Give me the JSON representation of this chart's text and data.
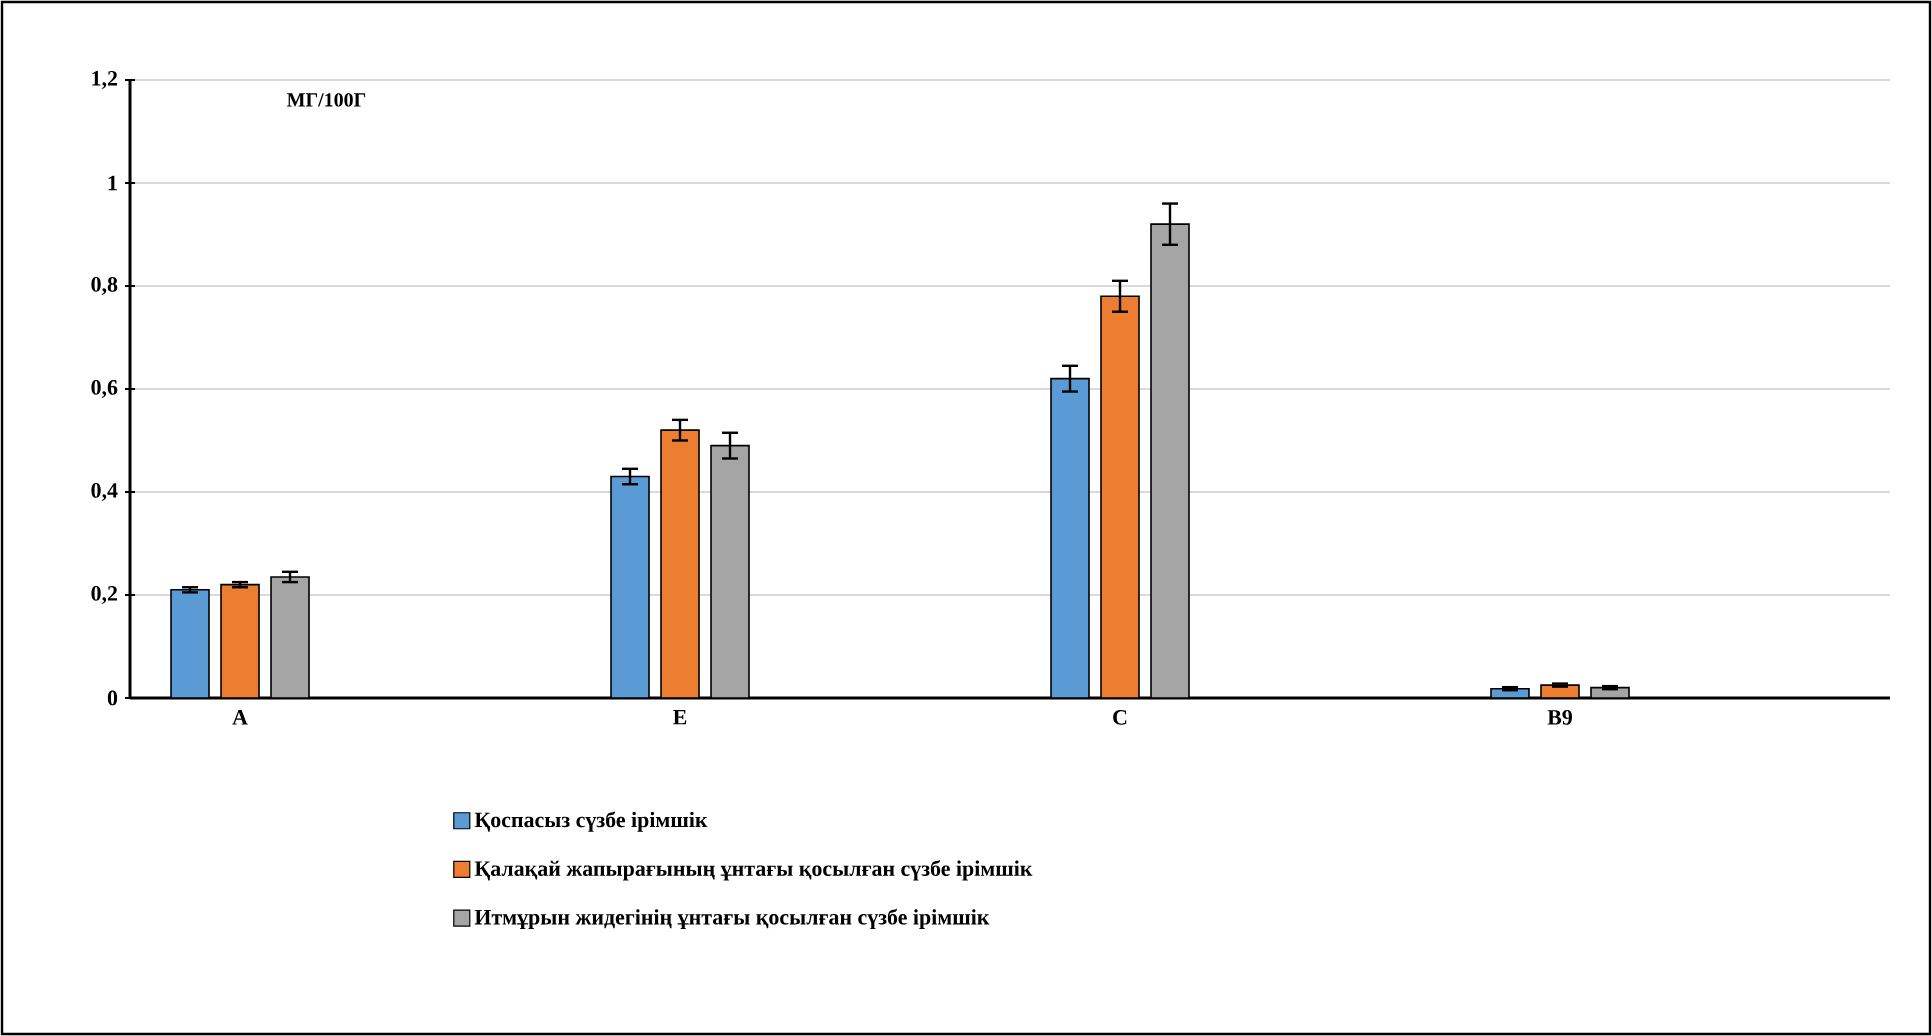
{
  "chart_data": {
    "type": "bar",
    "categories": [
      "A",
      null,
      "E",
      null,
      "C",
      null,
      "B9",
      null
    ],
    "series": [
      {
        "name": "Қоспасыз сүзбе ірімшік",
        "color": "#5b9bd5",
        "values": [
          0.21,
          null,
          0.43,
          null,
          0.62,
          null,
          0.018,
          null
        ],
        "errors": [
          0.005,
          null,
          0.015,
          null,
          0.025,
          null,
          0.003,
          null
        ]
      },
      {
        "name": "Қалақай жапырағының ұнтағы қосылған сүзбе ірімшік",
        "color": "#ed7d31",
        "values": [
          0.22,
          null,
          0.52,
          null,
          0.78,
          null,
          0.025,
          null
        ],
        "errors": [
          0.005,
          null,
          0.02,
          null,
          0.03,
          null,
          0.003,
          null
        ]
      },
      {
        "name": "Итмұрын жидегінің ұнтағы қосылған сүзбе ірімшік",
        "color": "#a5a5a5",
        "values": [
          0.235,
          null,
          0.49,
          null,
          0.92,
          null,
          0.02,
          null
        ],
        "errors": [
          0.01,
          null,
          0.025,
          null,
          0.04,
          null,
          0.003,
          null
        ]
      }
    ],
    "ylim": [
      0,
      1.2
    ],
    "yticks": [
      {
        "value": 0,
        "label": "0"
      },
      {
        "value": 0.2,
        "label": "0,2"
      },
      {
        "value": 0.4,
        "label": "0,4"
      },
      {
        "value": 0.6,
        "label": "0,6"
      },
      {
        "value": 0.8,
        "label": "0,8"
      },
      {
        "value": 1,
        "label": "1"
      },
      {
        "value": 1.2,
        "label": "1,2"
      }
    ],
    "grid": "y",
    "legend": "bottom",
    "annotations": [
      "МГ/100Г"
    ]
  }
}
